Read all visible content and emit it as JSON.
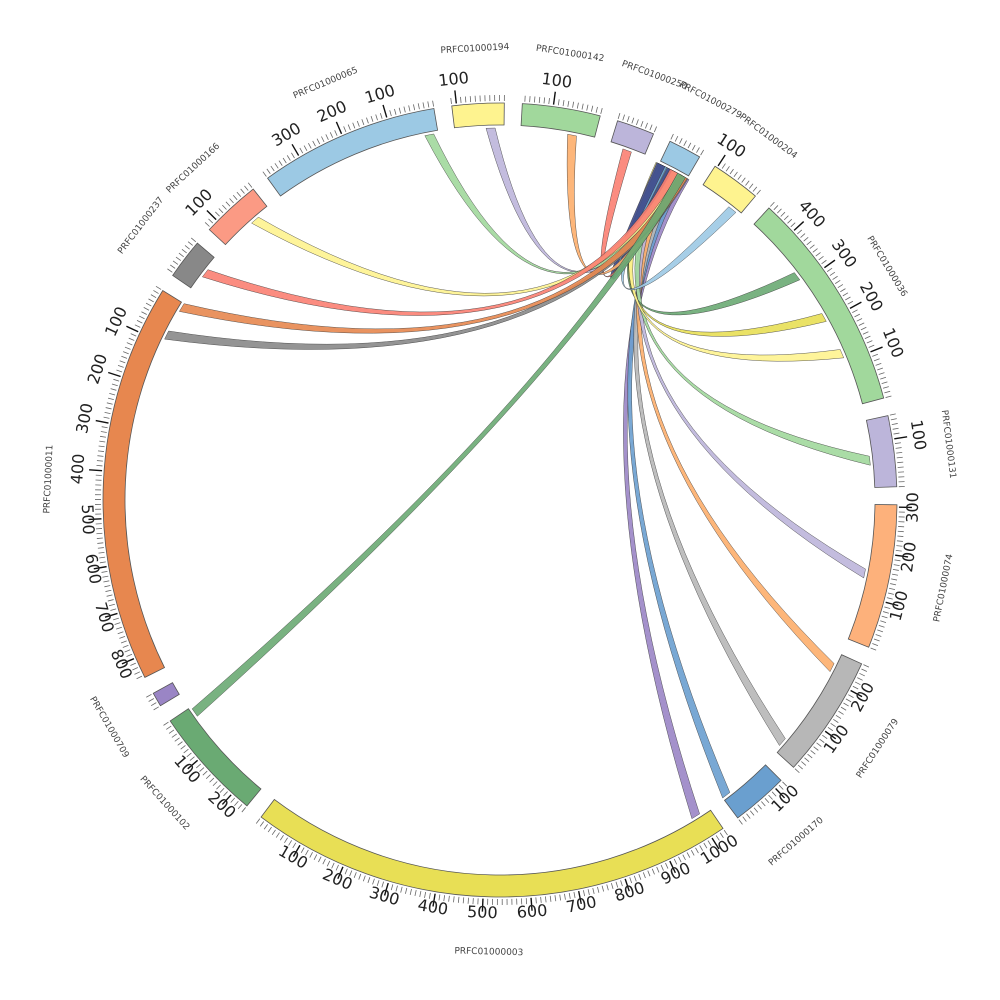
{
  "chart_data": {
    "type": "chord",
    "segments": [
      {
        "id": "PRFC01000003",
        "label": "PRFC01000003",
        "length": 1030,
        "color": "#e8df55",
        "ticks": [
          100,
          200,
          300,
          400,
          500,
          600,
          700,
          800,
          900,
          1000
        ]
      },
      {
        "id": "PRFC01000170",
        "label": "PRFC01000170",
        "length": 120,
        "color": "#6a9fcf",
        "ticks": [
          100
        ]
      },
      {
        "id": "PRFC01000079",
        "label": "PRFC01000079",
        "length": 260,
        "color": "#b7b7b7",
        "ticks": [
          100,
          200
        ]
      },
      {
        "id": "PRFC01000074",
        "label": "PRFC01000074",
        "length": 305,
        "color": "#fdb17b",
        "ticks": [
          100,
          200,
          300
        ]
      },
      {
        "id": "PRFC01000131",
        "label": "PRFC01000131",
        "length": 150,
        "color": "#bcb5da",
        "ticks": [
          100
        ]
      },
      {
        "id": "PRFC01000036",
        "label": "PRFC01000036",
        "length": 470,
        "color": "#a1d89c",
        "ticks": [
          100,
          200,
          300,
          400
        ]
      },
      {
        "id": "PRFC01000204",
        "label": "PRFC01000204",
        "length": 105,
        "color": "#fef38f",
        "ticks": [
          100
        ]
      },
      {
        "id": "PRFC01000279",
        "label": "PRFC01000279",
        "length": 70,
        "color": "#9cc9e4",
        "ticks": []
      },
      {
        "id": "PRFC01000250",
        "label": "PRFC01000250",
        "length": 80,
        "color": "#bcb5da",
        "ticks": []
      },
      {
        "id": "PRFC01000142",
        "label": "PRFC01000142",
        "length": 165,
        "color": "#a1d89c",
        "ticks": [
          100
        ]
      },
      {
        "id": "PRFC01000194",
        "label": "PRFC01000194",
        "length": 110,
        "color": "#fef38f",
        "ticks": [
          100
        ]
      },
      {
        "id": "PRFC01000065",
        "label": "PRFC01000065",
        "length": 380,
        "color": "#9cc9e4",
        "ticks": [
          100,
          200,
          300
        ]
      },
      {
        "id": "PRFC01000166",
        "label": "PRFC01000166",
        "length": 125,
        "color": "#fb9a84",
        "ticks": [
          100
        ]
      },
      {
        "id": "PRFC01000237",
        "label": "PRFC01000237",
        "length": 85,
        "color": "#888888",
        "ticks": []
      },
      {
        "id": "PRFC01000011",
        "label": "PRFC01000011",
        "length": 845,
        "color": "#e7874f",
        "ticks": [
          100,
          200,
          300,
          400,
          500,
          600,
          700,
          800
        ]
      },
      {
        "id": "PRFC01000709",
        "label": "PRFC01000709",
        "length": 30,
        "color": "#9a85c5",
        "ticks": []
      },
      {
        "id": "PRFC01000102",
        "label": "PRFC01000102",
        "length": 240,
        "color": "#6aaa73",
        "ticks": [
          100,
          200
        ]
      }
    ],
    "links": [
      {
        "from": "PRFC01000279",
        "from_pos": 5,
        "to": "PRFC01000003",
        "to_pos": 995,
        "color": "#9a85c5"
      },
      {
        "from": "PRFC01000279",
        "from_pos": 15,
        "to": "PRFC01000170",
        "to_pos": 10,
        "color": "#6a9fcf"
      },
      {
        "from": "PRFC01000279",
        "from_pos": 25,
        "to": "PRFC01000079",
        "to_pos": 25,
        "color": "#b7b7b7"
      },
      {
        "from": "PRFC01000279",
        "from_pos": 35,
        "to": "PRFC01000079",
        "to_pos": 225,
        "color": "#fdae6b"
      },
      {
        "from": "PRFC01000279",
        "from_pos": 45,
        "to": "PRFC01000074",
        "to_pos": 150,
        "color": "#bcb5da"
      },
      {
        "from": "PRFC01000279",
        "from_pos": 52,
        "to": "PRFC01000131",
        "to_pos": 60,
        "color": "#a1d89c"
      },
      {
        "from": "PRFC01000279",
        "from_pos": 60,
        "to": "PRFC01000036",
        "to_pos": 320,
        "color": "#6aaa73"
      },
      {
        "from": "PRFC01000279",
        "from_pos": 65,
        "to": "PRFC01000036",
        "to_pos": 210,
        "color": "#e8df55"
      },
      {
        "from": "PRFC01000279",
        "from_pos": 68,
        "to": "PRFC01000036",
        "to_pos": 120,
        "color": "#fef38f"
      },
      {
        "from": "PRFC01000279",
        "from_pos": 55,
        "to": "PRFC01000204",
        "to_pos": 20,
        "color": "#9cc9e4"
      },
      {
        "from": "PRFC01000279",
        "from_pos": 30,
        "to": "PRFC01000279",
        "to_pos": 62,
        "color": "#6a9fcf"
      },
      {
        "from": "PRFC01000279",
        "from_pos": 40,
        "to": "PRFC01000279",
        "to_pos": 66,
        "color": "#3f4a8a"
      },
      {
        "from": "PRFC01000279",
        "from_pos": 20,
        "to": "PRFC01000250",
        "to_pos": 40,
        "color": "#fb8072"
      },
      {
        "from": "PRFC01000279",
        "from_pos": 12,
        "to": "PRFC01000142",
        "to_pos": 50,
        "color": "#fdae6b"
      },
      {
        "from": "PRFC01000279",
        "from_pos": 18,
        "to": "PRFC01000194",
        "to_pos": 30,
        "color": "#bcb5da"
      },
      {
        "from": "PRFC01000279",
        "from_pos": 22,
        "to": "PRFC01000065",
        "to_pos": 20,
        "color": "#a1d89c"
      },
      {
        "from": "PRFC01000279",
        "from_pos": 28,
        "to": "PRFC01000166",
        "to_pos": 40,
        "color": "#fef38f"
      },
      {
        "from": "PRFC01000279",
        "from_pos": 33,
        "to": "PRFC01000237",
        "to_pos": 40,
        "color": "#fb8072"
      },
      {
        "from": "PRFC01000279",
        "from_pos": 8,
        "to": "PRFC01000011",
        "to_pos": 80,
        "color": "#888888"
      },
      {
        "from": "PRFC01000279",
        "from_pos": 10,
        "to": "PRFC01000011",
        "to_pos": 10,
        "color": "#e7874f"
      },
      {
        "from": "PRFC01000279",
        "from_pos": 14,
        "to": "PRFC01000102",
        "to_pos": 15,
        "color": "#6aaa73"
      }
    ]
  }
}
